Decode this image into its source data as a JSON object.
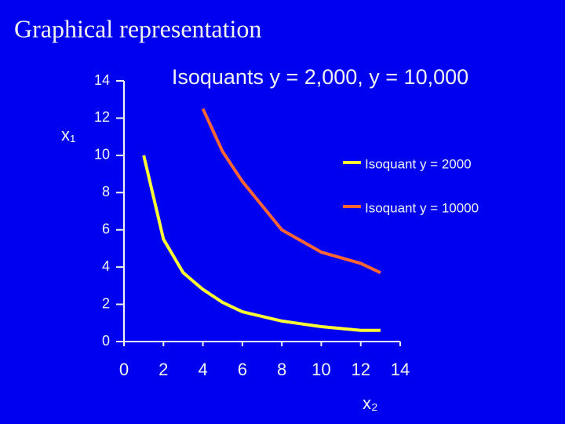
{
  "slide_title": "Graphical representation",
  "chart_data": {
    "type": "line",
    "title": "Isoquants y = 2,000, y = 10,000",
    "xlabel": "x₂",
    "ylabel": "x₁",
    "xlim": [
      0,
      14
    ],
    "ylim": [
      0,
      14
    ],
    "xticks": [
      0,
      2,
      4,
      6,
      8,
      10,
      12,
      14
    ],
    "yticks": [
      0,
      2,
      4,
      6,
      8,
      10,
      12,
      14
    ],
    "legend": "upper right",
    "series": [
      {
        "name": "Isoquant y = 2000",
        "color": "#ffff33",
        "x": [
          1,
          2,
          3,
          4,
          5,
          6,
          8,
          10,
          12,
          13
        ],
        "values": [
          10,
          5.5,
          3.7,
          2.8,
          2.1,
          1.6,
          1.1,
          0.8,
          0.6,
          0.6
        ]
      },
      {
        "name": "Isoquant y = 10000",
        "color": "#ff6633",
        "x": [
          4,
          5,
          6,
          8,
          10,
          12,
          13
        ],
        "values": [
          12.5,
          10.2,
          8.6,
          6,
          4.8,
          4.2,
          3.7
        ]
      }
    ]
  }
}
